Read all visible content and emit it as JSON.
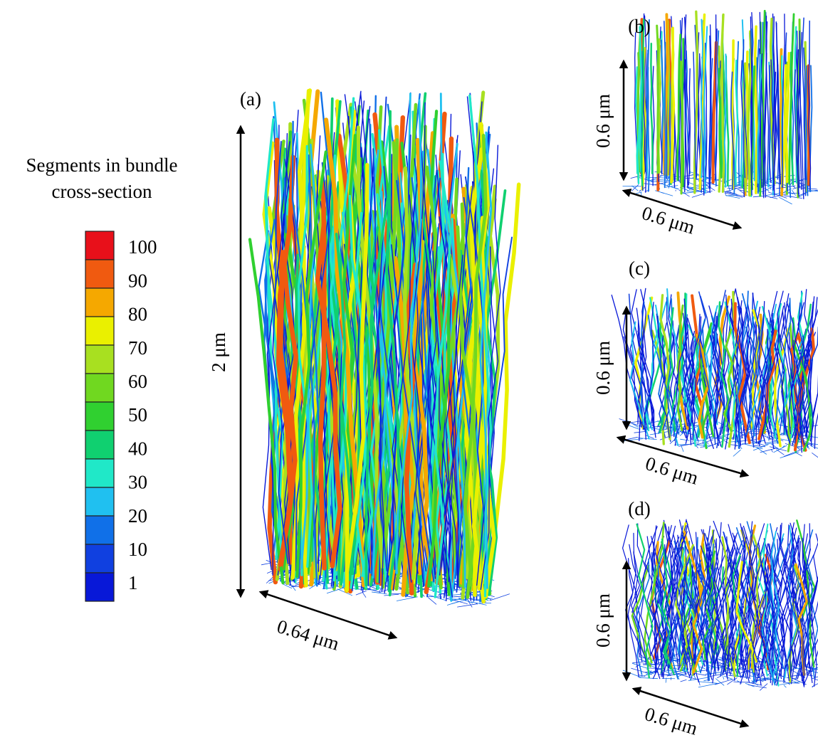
{
  "colorbar": {
    "title": [
      "Segments in bundle",
      "cross-section"
    ],
    "labels": [
      "100",
      "90",
      "80",
      "70",
      "60",
      "50",
      "40",
      "30",
      "20",
      "10",
      "1"
    ],
    "colors": [
      "#e8101a",
      "#f05a10",
      "#f5a800",
      "#eaf000",
      "#a8e020",
      "#70d820",
      "#30d030",
      "#10d070",
      "#20e8c8",
      "#20c0f0",
      "#1070e8",
      "#1040e0",
      "#0818d8"
    ]
  },
  "panels": [
    {
      "label": "(a)",
      "height_label": "2 μm",
      "width_label": "0.64 μm"
    },
    {
      "label": "(b)",
      "height_label": "0.6 μm",
      "width_label": "0.6 μm"
    },
    {
      "label": "(c)",
      "height_label": "0.6 μm",
      "width_label": "0.6 μm"
    },
    {
      "label": "(d)",
      "height_label": "0.6 μm",
      "width_label": "0.6 μm"
    }
  ]
}
